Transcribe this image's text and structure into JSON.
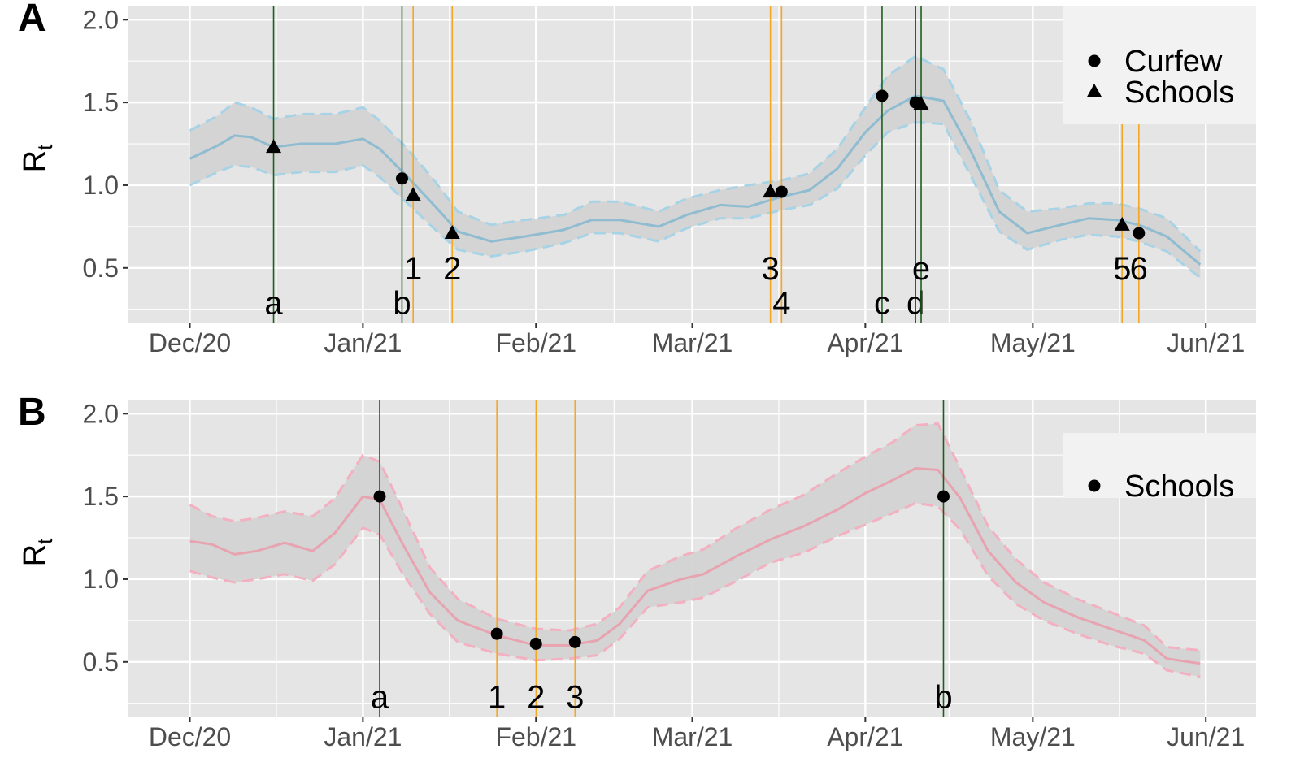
{
  "colors": {
    "panel_bg": "#e5e5e5",
    "grid": "#ffffff",
    "ribbon": "#d3d3d3",
    "panelA_line": "#8fbcd0",
    "panelA_dash": "#a7d3e6",
    "panelB_line": "#e8a3b0",
    "panelB_dash": "#f3b0c0",
    "green_vline": "#1d5e1d",
    "orange_vline": "#f5a623",
    "marker": "#000000",
    "axis_text": "#4d4d4d"
  },
  "chart_data": [
    {
      "panel_label": "A",
      "type": "line",
      "ylabel": "R",
      "ylabel_sub": "t",
      "x_axis": {
        "tick_labels": [
          "Dec/20",
          "Jan/21",
          "Feb/21",
          "Mar/21",
          "Apr/21",
          "May/21",
          "Jun/21"
        ],
        "tick_dates": [
          "2020-12-01",
          "2021-01-01",
          "2021-02-01",
          "2021-03-01",
          "2021-04-01",
          "2021-05-01",
          "2021-06-01"
        ],
        "range": [
          "2020-11-20",
          "2021-06-10"
        ]
      },
      "y_axis": {
        "tick_labels": [
          "0.5",
          "1.0",
          "1.5",
          "2.0"
        ],
        "ticks": [
          0.5,
          1.0,
          1.5,
          2.0
        ],
        "range": [
          0.17,
          2.08
        ]
      },
      "grid": true,
      "series": {
        "x": [
          "2020-12-01",
          "2020-12-06",
          "2020-12-09",
          "2020-12-12",
          "2020-12-16",
          "2020-12-21",
          "2020-12-27",
          "2021-01-01",
          "2021-01-04",
          "2021-01-09",
          "2021-01-14",
          "2021-01-18",
          "2021-01-24",
          "2021-01-30",
          "2021-02-06",
          "2021-02-11",
          "2021-02-16",
          "2021-02-23",
          "2021-02-28",
          "2021-03-06",
          "2021-03-11",
          "2021-03-17",
          "2021-03-22",
          "2021-03-27",
          "2021-04-01",
          "2021-04-05",
          "2021-04-10",
          "2021-04-15",
          "2021-04-20",
          "2021-04-25",
          "2021-04-30",
          "2021-05-06",
          "2021-05-11",
          "2021-05-16",
          "2021-05-20",
          "2021-05-25",
          "2021-05-31"
        ],
        "y": [
          1.16,
          1.24,
          1.3,
          1.29,
          1.23,
          1.25,
          1.25,
          1.28,
          1.22,
          1.05,
          0.87,
          0.72,
          0.66,
          0.69,
          0.73,
          0.79,
          0.79,
          0.75,
          0.82,
          0.88,
          0.87,
          0.93,
          0.97,
          1.1,
          1.32,
          1.45,
          1.54,
          1.51,
          1.2,
          0.84,
          0.71,
          0.76,
          0.8,
          0.79,
          0.76,
          0.69,
          0.52
        ],
        "lower": [
          1.0,
          1.08,
          1.12,
          1.11,
          1.06,
          1.08,
          1.08,
          1.12,
          1.05,
          0.89,
          0.73,
          0.61,
          0.57,
          0.6,
          0.65,
          0.71,
          0.71,
          0.66,
          0.74,
          0.8,
          0.8,
          0.85,
          0.88,
          0.98,
          1.18,
          1.32,
          1.38,
          1.37,
          1.05,
          0.72,
          0.61,
          0.67,
          0.7,
          0.69,
          0.66,
          0.6,
          0.44
        ],
        "upper": [
          1.33,
          1.42,
          1.5,
          1.47,
          1.4,
          1.43,
          1.43,
          1.47,
          1.39,
          1.22,
          1.02,
          0.84,
          0.76,
          0.79,
          0.82,
          0.9,
          0.9,
          0.84,
          0.92,
          0.97,
          1.0,
          1.03,
          1.07,
          1.22,
          1.47,
          1.66,
          1.78,
          1.7,
          1.38,
          0.97,
          0.84,
          0.86,
          0.89,
          0.89,
          0.86,
          0.8,
          0.6
        ]
      },
      "vlines": [
        {
          "date": "2020-12-16",
          "label": "a",
          "color": "green",
          "label_y": 0.28
        },
        {
          "date": "2021-01-08",
          "label": "b",
          "color": "green",
          "label_y": 0.28
        },
        {
          "date": "2021-01-10",
          "label": "1",
          "color": "orange",
          "label_y": 0.49
        },
        {
          "date": "2021-01-17",
          "label": "2",
          "color": "orange",
          "label_y": 0.49
        },
        {
          "date": "2021-03-15",
          "label": "3",
          "color": "orange",
          "label_y": 0.49
        },
        {
          "date": "2021-03-17",
          "label": "4",
          "color": "orange",
          "label_y": 0.28
        },
        {
          "date": "2021-04-04",
          "label": "c",
          "color": "green",
          "label_y": 0.28
        },
        {
          "date": "2021-04-10",
          "label": "d",
          "color": "green",
          "label_y": 0.28
        },
        {
          "date": "2021-04-11",
          "label": "e",
          "color": "green",
          "label_y": 0.49
        },
        {
          "date": "2021-05-17",
          "label": "5",
          "color": "orange",
          "label_y": 0.49
        },
        {
          "date": "2021-05-20",
          "label": "6",
          "color": "orange",
          "label_y": 0.49
        }
      ],
      "points": [
        {
          "date": "2020-12-16",
          "y": 1.23,
          "shape": "triangle"
        },
        {
          "date": "2021-01-08",
          "y": 1.04,
          "shape": "circle"
        },
        {
          "date": "2021-01-10",
          "y": 0.94,
          "shape": "triangle"
        },
        {
          "date": "2021-01-17",
          "y": 0.71,
          "shape": "triangle"
        },
        {
          "date": "2021-03-15",
          "y": 0.96,
          "shape": "triangle"
        },
        {
          "date": "2021-03-17",
          "y": 0.96,
          "shape": "circle"
        },
        {
          "date": "2021-04-04",
          "y": 1.54,
          "shape": "circle"
        },
        {
          "date": "2021-04-10",
          "y": 1.5,
          "shape": "circle"
        },
        {
          "date": "2021-04-11",
          "y": 1.49,
          "shape": "triangle"
        },
        {
          "date": "2021-05-17",
          "y": 0.76,
          "shape": "triangle"
        },
        {
          "date": "2021-05-20",
          "y": 0.71,
          "shape": "circle"
        }
      ],
      "legend": {
        "position": "top-right",
        "entries": [
          {
            "label": "Curfew",
            "shape": "circle"
          },
          {
            "label": "Schools",
            "shape": "triangle"
          }
        ]
      }
    },
    {
      "panel_label": "B",
      "type": "line",
      "ylabel": "R",
      "ylabel_sub": "t",
      "x_axis": {
        "tick_labels": [
          "Dec/20",
          "Jan/21",
          "Feb/21",
          "Mar/21",
          "Apr/21",
          "May/21",
          "Jun/21"
        ],
        "tick_dates": [
          "2020-12-01",
          "2021-01-01",
          "2021-02-01",
          "2021-03-01",
          "2021-04-01",
          "2021-05-01",
          "2021-06-01"
        ],
        "range": [
          "2020-11-20",
          "2021-06-10"
        ]
      },
      "y_axis": {
        "tick_labels": [
          "0.5",
          "1.0",
          "1.5",
          "2.0"
        ],
        "ticks": [
          0.5,
          1.0,
          1.5,
          2.0
        ],
        "range": [
          0.17,
          2.08
        ]
      },
      "grid": true,
      "series": {
        "x": [
          "2020-12-01",
          "2020-12-05",
          "2020-12-09",
          "2020-12-13",
          "2020-12-18",
          "2020-12-23",
          "2020-12-27",
          "2021-01-01",
          "2021-01-04",
          "2021-01-08",
          "2021-01-13",
          "2021-01-18",
          "2021-01-25",
          "2021-02-01",
          "2021-02-07",
          "2021-02-12",
          "2021-02-16",
          "2021-02-21",
          "2021-02-27",
          "2021-03-03",
          "2021-03-09",
          "2021-03-15",
          "2021-03-21",
          "2021-03-27",
          "2021-04-01",
          "2021-04-06",
          "2021-04-10",
          "2021-04-14",
          "2021-04-18",
          "2021-04-23",
          "2021-04-28",
          "2021-05-03",
          "2021-05-09",
          "2021-05-15",
          "2021-05-21",
          "2021-05-25",
          "2021-05-31"
        ],
        "y": [
          1.23,
          1.21,
          1.15,
          1.17,
          1.22,
          1.17,
          1.28,
          1.5,
          1.48,
          1.22,
          0.92,
          0.75,
          0.66,
          0.6,
          0.6,
          0.63,
          0.73,
          0.93,
          1.0,
          1.03,
          1.14,
          1.24,
          1.32,
          1.42,
          1.52,
          1.6,
          1.67,
          1.66,
          1.49,
          1.17,
          0.98,
          0.86,
          0.77,
          0.7,
          0.63,
          0.52,
          0.49
        ],
        "lower": [
          1.05,
          1.01,
          0.98,
          1.0,
          1.03,
          0.99,
          1.09,
          1.31,
          1.27,
          1.04,
          0.79,
          0.62,
          0.55,
          0.51,
          0.52,
          0.54,
          0.64,
          0.83,
          0.86,
          0.89,
          0.99,
          1.1,
          1.16,
          1.26,
          1.33,
          1.4,
          1.46,
          1.44,
          1.3,
          1.02,
          0.85,
          0.75,
          0.67,
          0.6,
          0.55,
          0.45,
          0.41
        ],
        "upper": [
          1.45,
          1.38,
          1.35,
          1.37,
          1.41,
          1.38,
          1.49,
          1.75,
          1.71,
          1.43,
          1.07,
          0.88,
          0.76,
          0.7,
          0.69,
          0.73,
          0.83,
          1.05,
          1.14,
          1.18,
          1.31,
          1.42,
          1.51,
          1.64,
          1.74,
          1.83,
          1.93,
          1.94,
          1.67,
          1.32,
          1.12,
          0.98,
          0.88,
          0.8,
          0.72,
          0.59,
          0.57
        ]
      },
      "vlines": [
        {
          "date": "2021-01-04",
          "label": "a",
          "color": "green",
          "label_y": 0.28
        },
        {
          "date": "2021-01-25",
          "label": "1",
          "color": "orange",
          "label_y": 0.28
        },
        {
          "date": "2021-02-01",
          "label": "2",
          "color": "orange",
          "label_y": 0.28
        },
        {
          "date": "2021-02-08",
          "label": "3",
          "color": "orange",
          "label_y": 0.28
        },
        {
          "date": "2021-04-15",
          "label": "b",
          "color": "green",
          "label_y": 0.28
        }
      ],
      "points": [
        {
          "date": "2021-01-04",
          "y": 1.5,
          "shape": "circle"
        },
        {
          "date": "2021-01-25",
          "y": 0.67,
          "shape": "circle"
        },
        {
          "date": "2021-02-01",
          "y": 0.61,
          "shape": "circle"
        },
        {
          "date": "2021-02-08",
          "y": 0.62,
          "shape": "circle"
        },
        {
          "date": "2021-04-15",
          "y": 1.5,
          "shape": "circle"
        }
      ],
      "legend": {
        "position": "top-right",
        "entries": [
          {
            "label": "Schools",
            "shape": "circle"
          }
        ]
      }
    }
  ]
}
